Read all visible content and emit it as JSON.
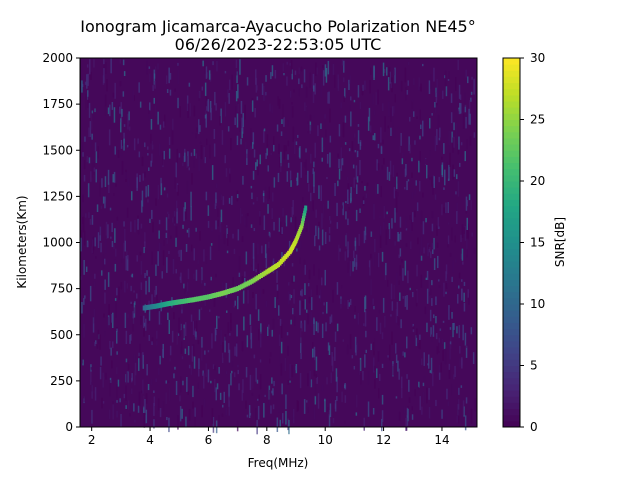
{
  "chart_data": {
    "type": "heatmap",
    "title_line1": "Ionogram Jicamarca-Ayacucho Polarization NE45°",
    "title_line2": "06/26/2023-22:53:05 UTC",
    "xlabel": "Freq(MHz)",
    "ylabel": "Kilometers(Km)",
    "xlim": [
      1.6,
      15.2
    ],
    "ylim": [
      0,
      2000
    ],
    "xticks": [
      2,
      4,
      6,
      8,
      10,
      12,
      14
    ],
    "yticks": [
      0,
      250,
      500,
      750,
      1000,
      1250,
      1500,
      1750,
      2000
    ],
    "colorbar": {
      "label": "SNR[dB]",
      "colormap": "viridis",
      "range": [
        0,
        30
      ],
      "ticks": [
        0,
        5,
        10,
        15,
        20,
        25,
        30
      ]
    },
    "trace": {
      "description_points_freq_mhz": [
        3.8,
        4.2,
        4.6,
        5.0,
        5.5,
        6.0,
        6.5,
        7.0,
        7.5,
        8.0,
        8.4,
        8.8,
        9.0,
        9.2,
        9.35
      ],
      "range_km": [
        645,
        655,
        668,
        678,
        690,
        705,
        725,
        750,
        790,
        840,
        880,
        950,
        1010,
        1090,
        1200
      ],
      "snr_db": [
        10,
        14,
        18,
        20,
        22,
        22,
        24,
        23,
        24,
        26,
        27,
        28,
        27,
        25,
        16
      ]
    },
    "noise_floor_db": [
      0,
      6
    ]
  }
}
